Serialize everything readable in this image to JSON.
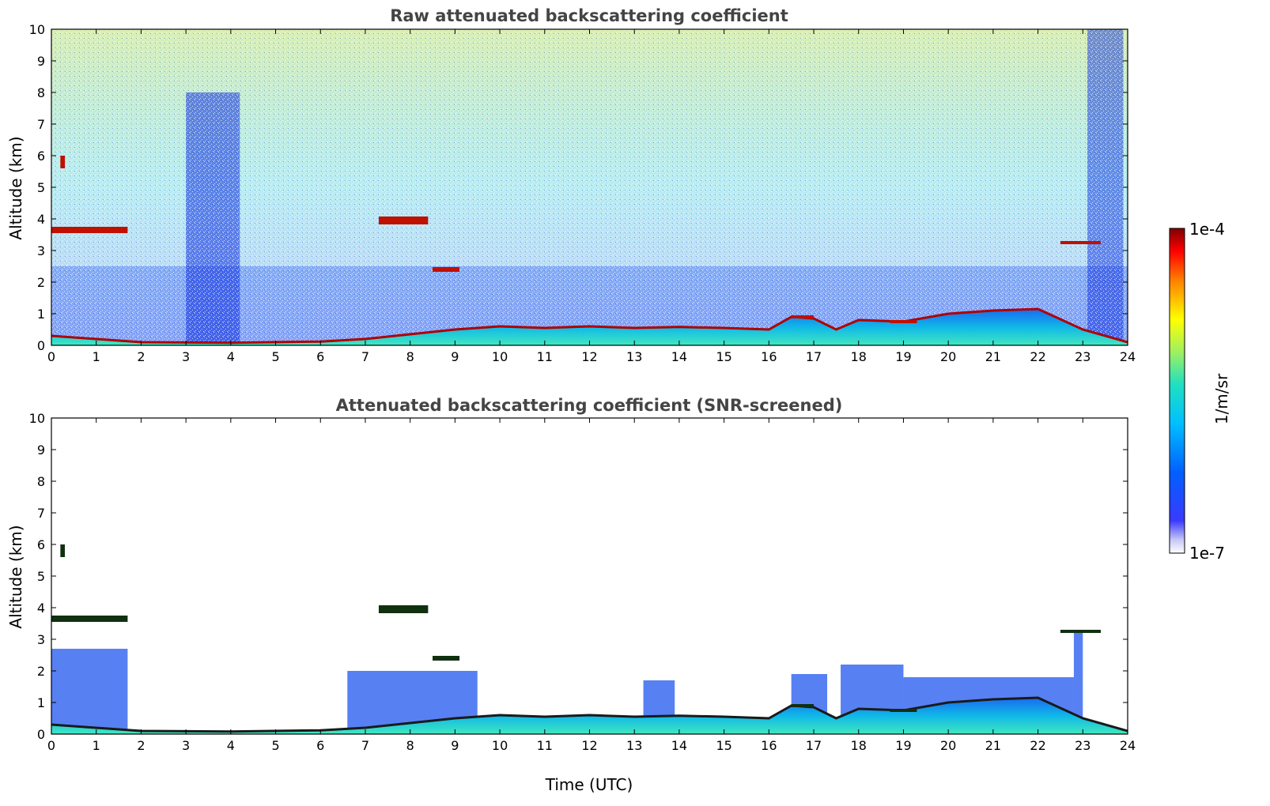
{
  "chart_data": [
    {
      "type": "heatmap",
      "title": "Raw attenuated backscattering coefficient",
      "xlabel": "",
      "ylabel": "Altitude (km)",
      "xlim": [
        0,
        24
      ],
      "ylim": [
        0,
        10
      ],
      "xticks": [
        0,
        1,
        2,
        3,
        4,
        5,
        6,
        7,
        8,
        9,
        10,
        11,
        12,
        13,
        14,
        15,
        16,
        17,
        18,
        19,
        20,
        21,
        22,
        23,
        24
      ],
      "yticks": [
        0,
        1,
        2,
        3,
        4,
        5,
        6,
        7,
        8,
        9,
        10
      ],
      "grid": false,
      "boundary_layer_top_km": {
        "time": [
          0,
          1.5,
          2,
          4,
          6,
          7,
          8,
          9,
          10,
          11,
          12,
          13,
          14,
          15,
          16,
          16.5,
          17,
          17.5,
          18,
          19,
          20,
          21,
          22,
          23,
          24
        ],
        "height": [
          0.3,
          0.15,
          0.1,
          0.08,
          0.12,
          0.2,
          0.35,
          0.5,
          0.6,
          0.55,
          0.6,
          0.55,
          0.58,
          0.55,
          0.5,
          0.9,
          0.85,
          0.5,
          0.8,
          0.75,
          1.0,
          1.1,
          1.15,
          0.5,
          0.1
        ]
      },
      "cloud_layers": [
        {
          "t0": 0,
          "t1": 1.7,
          "h": 3.65,
          "thickness": 0.2
        },
        {
          "t0": 0.2,
          "t1": 0.3,
          "h": 5.8,
          "thickness": 0.4
        },
        {
          "t0": 7.3,
          "t1": 8.4,
          "h": 3.95,
          "thickness": 0.25
        },
        {
          "t0": 8.5,
          "t1": 9.1,
          "h": 2.4,
          "thickness": 0.15
        },
        {
          "t0": 22.5,
          "t1": 23.4,
          "h": 3.25,
          "thickness": 0.1
        },
        {
          "t0": 16.5,
          "t1": 17.0,
          "h": 0.9,
          "thickness": 0.1
        },
        {
          "t0": 18.7,
          "t1": 19.3,
          "h": 0.75,
          "thickness": 0.1
        }
      ]
    },
    {
      "type": "heatmap",
      "title": "Attenuated backscattering coefficient (SNR-screened)",
      "xlabel": "Time (UTC)",
      "ylabel": "Altitude (km)",
      "xlim": [
        0,
        24
      ],
      "ylim": [
        0,
        10
      ],
      "xticks": [
        0,
        1,
        2,
        3,
        4,
        5,
        6,
        7,
        8,
        9,
        10,
        11,
        12,
        13,
        14,
        15,
        16,
        17,
        18,
        19,
        20,
        21,
        22,
        23,
        24
      ],
      "yticks": [
        0,
        1,
        2,
        3,
        4,
        5,
        6,
        7,
        8,
        9,
        10
      ],
      "grid": false
    }
  ],
  "colorbar": {
    "label": "1/m/sr",
    "max_label": "1e-4",
    "min_label": "1e-7",
    "scale": "log",
    "colormap": "jet",
    "range": [
      1e-07,
      0.0001
    ]
  },
  "colors": {
    "background_low": "#ffffff",
    "aerosol_blue": "#1a3fe0",
    "boundary_cyan": "#2fd8d0",
    "cloud_red": "#b00000",
    "title_gray": "#444444"
  }
}
